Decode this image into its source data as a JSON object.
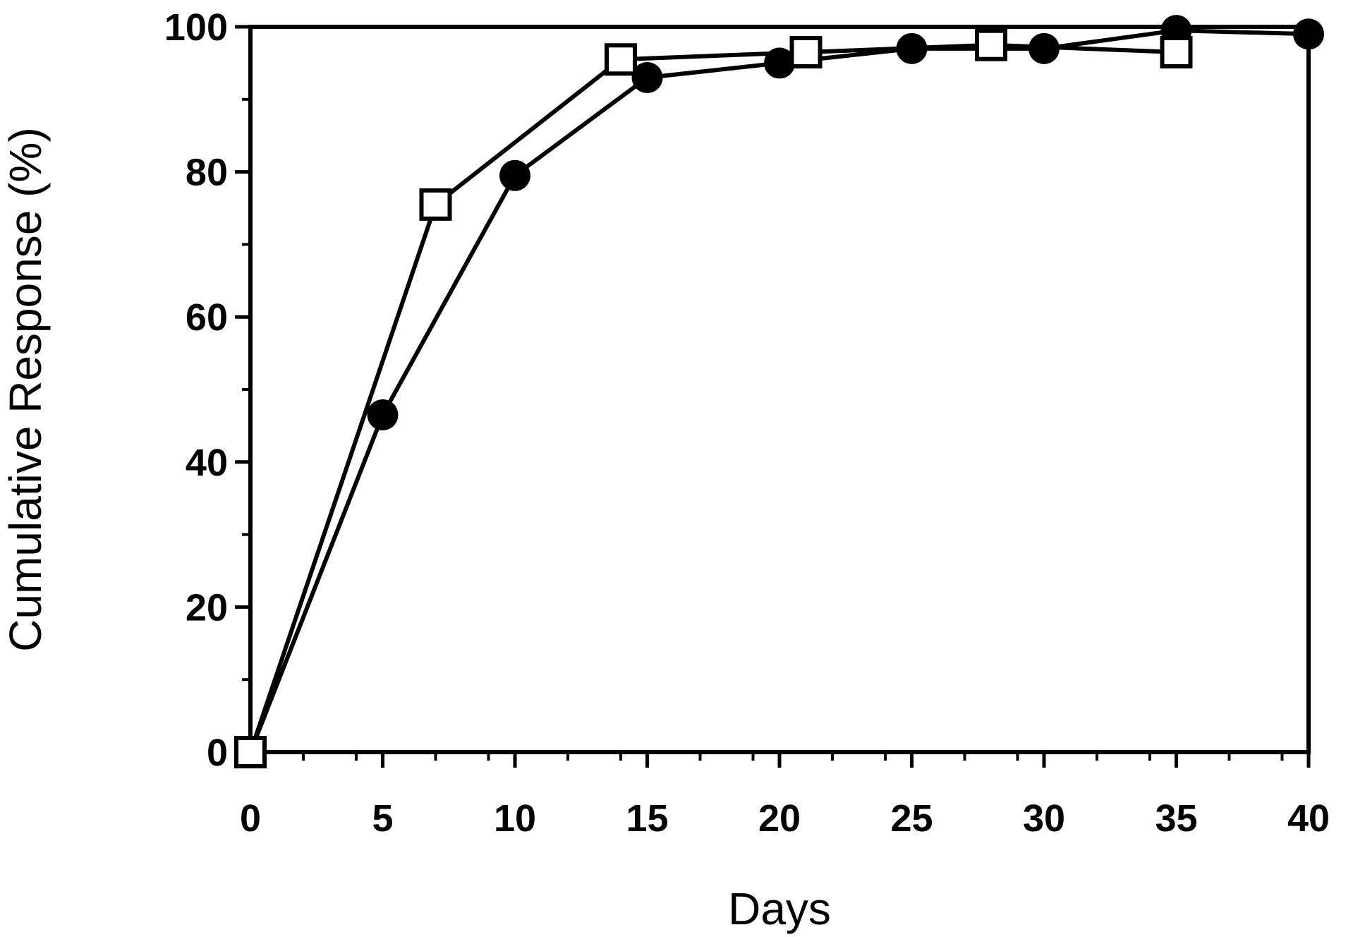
{
  "chart_data": {
    "type": "line",
    "xlabel": "Days",
    "ylabel": "Cumulative Response (%)",
    "xlim": [
      0,
      40
    ],
    "ylim": [
      0,
      100
    ],
    "xticks": [
      0,
      5,
      10,
      15,
      20,
      25,
      30,
      35,
      40
    ],
    "yticks": [
      0,
      20,
      40,
      60,
      80,
      100
    ],
    "grid": false,
    "series": [
      {
        "marker": "filled-circle",
        "color": "#000000",
        "x": [
          0,
          5,
          10,
          15,
          20,
          25,
          30,
          35,
          40
        ],
        "y": [
          0,
          46.5,
          79.5,
          93,
          95,
          97,
          97,
          99.5,
          99
        ]
      },
      {
        "marker": "open-square",
        "color": "#000000",
        "x": [
          0,
          7,
          14,
          21,
          28,
          35
        ],
        "y": [
          0,
          75.5,
          95.5,
          96.5,
          97.5,
          96.5
        ]
      }
    ]
  }
}
